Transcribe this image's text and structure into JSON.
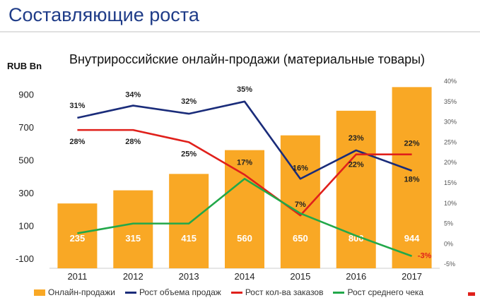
{
  "page": {
    "title": "Составляющие роста",
    "unit_label": "RUB Bn"
  },
  "chart_data": {
    "type": "bar",
    "title": "Внутрироссийские онлайн-продажи (материальные товары)",
    "categories": [
      "2011",
      "2012",
      "2013",
      "2014",
      "2015",
      "2016",
      "2017"
    ],
    "y_left": {
      "ticks": [
        -100,
        100,
        300,
        500,
        700,
        900
      ],
      "range": [
        -160,
        980
      ]
    },
    "y_right": {
      "ticks": [
        "-5%",
        "0%",
        "5%",
        "10%",
        "15%",
        "20%",
        "25%",
        "30%",
        "35%",
        "40%"
      ],
      "range": [
        -6,
        40
      ]
    },
    "series": [
      {
        "name": "Онлайн-продажи",
        "kind": "bar",
        "axis": "left",
        "color": "#f9a825",
        "values": [
          235,
          315,
          415,
          560,
          650,
          800,
          944
        ],
        "labels": [
          "235",
          "315",
          "415",
          "560",
          "650",
          "800",
          "944"
        ]
      },
      {
        "name": "Рост объема продаж",
        "kind": "line",
        "axis": "right",
        "color": "#1a2c7a",
        "values": [
          31,
          34,
          32,
          35,
          16,
          23,
          18
        ],
        "labels": [
          "31%",
          "34%",
          "32%",
          "35%",
          "16%",
          "23%",
          "18%"
        ]
      },
      {
        "name": "Рост кол-ва заказов",
        "kind": "line",
        "axis": "right",
        "color": "#e0201b",
        "values": [
          28,
          28,
          25,
          17,
          7,
          22,
          22
        ],
        "labels": [
          "28%",
          "28%",
          "25%",
          "17%",
          "7%",
          "22%",
          "22%"
        ]
      },
      {
        "name": "Рост среднего чека",
        "kind": "line",
        "axis": "right",
        "color": "#22a84a",
        "values": [
          2.6,
          5,
          5,
          16,
          7.5,
          2,
          -3
        ],
        "labels": [
          "",
          "",
          "",
          "",
          "",
          "",
          "-3%"
        ]
      }
    ],
    "legend": "bottom",
    "grid": false
  }
}
